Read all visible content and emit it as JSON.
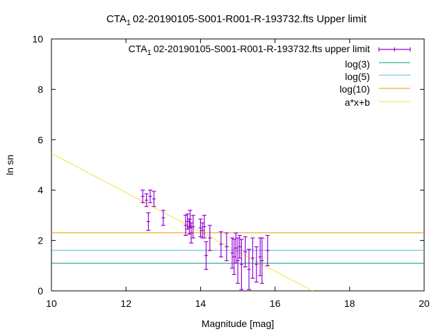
{
  "chart_data": {
    "type": "scatter",
    "title_main": "CTA",
    "title_sub": "1",
    "title_rest": "02-20190105-S001-R001-R-193732.fts Upper limit",
    "xlabel": "Magnitude [mag]",
    "ylabel": "ln sn",
    "xlim": [
      10,
      20
    ],
    "ylim": [
      0,
      10
    ],
    "x_ticks": [
      "10",
      "12",
      "14",
      "16",
      "18",
      "20"
    ],
    "y_ticks": [
      "0",
      "2",
      "4",
      "6",
      "8",
      "10"
    ],
    "legend_position": "top-right",
    "grid": false,
    "series": [
      {
        "name_main": "CTA",
        "name_sub": "1",
        "name_rest": "02-20190105-S001-R001-R-193732.fts upper limit",
        "kind": "errorbars",
        "color": "#9400d3",
        "points": [
          {
            "x": 12.45,
            "y": 3.75,
            "err": 0.25
          },
          {
            "x": 12.55,
            "y": 3.6,
            "err": 0.25
          },
          {
            "x": 12.6,
            "y": 2.75,
            "err": 0.35
          },
          {
            "x": 12.65,
            "y": 3.75,
            "err": 0.25
          },
          {
            "x": 12.75,
            "y": 3.65,
            "err": 0.3
          },
          {
            "x": 13.0,
            "y": 2.9,
            "err": 0.3
          },
          {
            "x": 13.6,
            "y": 2.6,
            "err": 0.4
          },
          {
            "x": 13.65,
            "y": 2.75,
            "err": 0.3
          },
          {
            "x": 13.7,
            "y": 2.55,
            "err": 0.3
          },
          {
            "x": 13.72,
            "y": 2.85,
            "err": 0.35
          },
          {
            "x": 13.75,
            "y": 2.3,
            "err": 0.4
          },
          {
            "x": 13.8,
            "y": 2.55,
            "err": 0.45
          },
          {
            "x": 14.0,
            "y": 2.5,
            "err": 0.35
          },
          {
            "x": 14.05,
            "y": 2.4,
            "err": 0.3
          },
          {
            "x": 14.1,
            "y": 2.55,
            "err": 0.45
          },
          {
            "x": 14.15,
            "y": 1.4,
            "err": 0.55
          },
          {
            "x": 14.25,
            "y": 2.1,
            "err": 0.5
          },
          {
            "x": 14.55,
            "y": 1.85,
            "err": 0.5
          },
          {
            "x": 14.7,
            "y": 1.75,
            "err": 0.55
          },
          {
            "x": 14.85,
            "y": 1.5,
            "err": 0.6
          },
          {
            "x": 14.9,
            "y": 1.35,
            "err": 0.7
          },
          {
            "x": 14.95,
            "y": 1.7,
            "err": 0.6
          },
          {
            "x": 15.0,
            "y": 1.2,
            "err": 0.9
          },
          {
            "x": 15.05,
            "y": 1.75,
            "err": 0.45
          },
          {
            "x": 15.1,
            "y": 1.05,
            "err": 1.0
          },
          {
            "x": 15.2,
            "y": 1.55,
            "err": 0.6
          },
          {
            "x": 15.3,
            "y": 0.85,
            "err": 0.8
          },
          {
            "x": 15.4,
            "y": 1.3,
            "err": 0.8
          },
          {
            "x": 15.5,
            "y": 1.05,
            "err": 0.7
          },
          {
            "x": 15.6,
            "y": 1.35,
            "err": 0.75
          },
          {
            "x": 15.65,
            "y": 1.2,
            "err": 0.9
          },
          {
            "x": 15.8,
            "y": 1.6,
            "err": 0.6
          }
        ]
      },
      {
        "name": "log(3)",
        "kind": "hline",
        "y": 1.0986,
        "color": "#009e73"
      },
      {
        "name": "log(5)",
        "kind": "hline",
        "y": 1.6094,
        "color": "#56b4e9"
      },
      {
        "name": "log(10)",
        "kind": "hline",
        "y": 2.3026,
        "color": "#e69f00"
      },
      {
        "name": "a*x+b",
        "kind": "line",
        "slope": -0.78,
        "intercept": 13.26,
        "color": "#f0e442"
      }
    ]
  }
}
